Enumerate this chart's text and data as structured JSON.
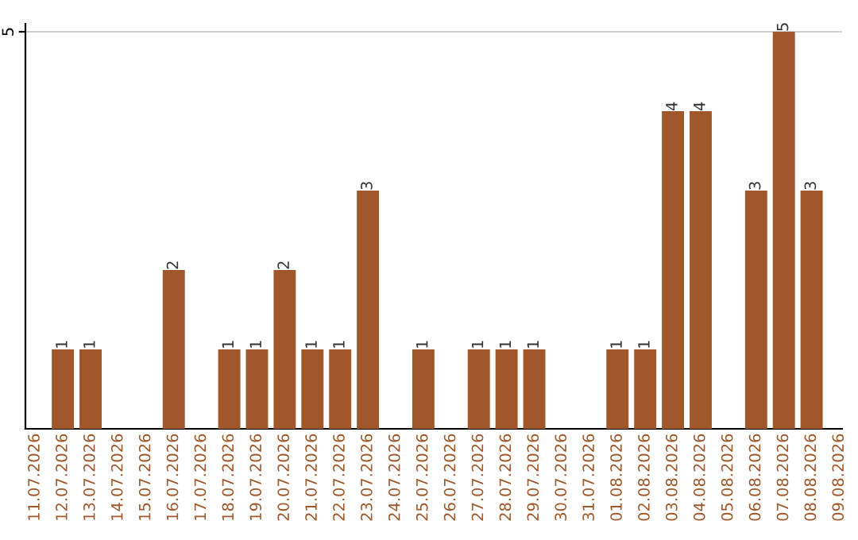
{
  "chart_data": {
    "type": "bar",
    "categories": [
      "11.07.2026",
      "12.07.2026",
      "13.07.2026",
      "14.07.2026",
      "15.07.2026",
      "16.07.2026",
      "17.07.2026",
      "18.07.2026",
      "19.07.2026",
      "20.07.2026",
      "21.07.2026",
      "22.07.2026",
      "23.07.2026",
      "24.07.2026",
      "25.07.2026",
      "26.07.2026",
      "27.07.2026",
      "28.07.2026",
      "29.07.2026",
      "30.07.2026",
      "31.07.2026",
      "01.08.2026",
      "02.08.2026",
      "03.08.2026",
      "04.08.2026",
      "05.08.2026",
      "06.08.2026",
      "07.08.2026",
      "08.08.2026",
      "09.08.2026"
    ],
    "values": [
      0,
      1,
      1,
      0,
      0,
      2,
      0,
      1,
      1,
      2,
      1,
      1,
      3,
      0,
      1,
      0,
      1,
      1,
      1,
      0,
      0,
      1,
      1,
      4,
      4,
      0,
      3,
      5,
      3,
      0
    ],
    "value_labels": [
      null,
      "1",
      "1",
      null,
      null,
      "2",
      null,
      "1",
      "1",
      "2",
      "1",
      "1",
      "3",
      null,
      "1",
      null,
      "1",
      "1",
      "1",
      null,
      null,
      "1",
      "1",
      "4",
      "4",
      null,
      "3",
      "5",
      "3",
      null
    ],
    "color": "#a0582a",
    "ylim": [
      0,
      5.1
    ],
    "yticks": [
      5
    ],
    "grid": "y"
  }
}
